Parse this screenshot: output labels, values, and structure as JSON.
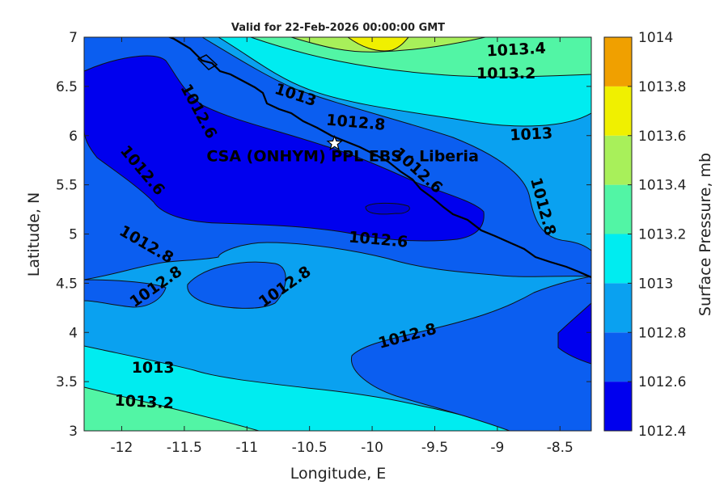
{
  "chart_data": {
    "type": "contour",
    "title": "Valid for 22-Feb-2026 00:00:00 GMT",
    "xlabel": "Longitude, E",
    "ylabel": "Latitude, N",
    "xlim": [
      -12.3,
      -8.25
    ],
    "ylim": [
      3,
      7
    ],
    "xticks": [
      -12,
      -11.5,
      -11,
      -10.5,
      -10,
      -9.5,
      -9,
      -8.5
    ],
    "xtick_labels": [
      "-12",
      "-11.5",
      "-11",
      "-10.5",
      "-10",
      "-9.5",
      "-9",
      "-8.5"
    ],
    "yticks": [
      3,
      3.5,
      4,
      4.5,
      5,
      5.5,
      6,
      6.5,
      7
    ],
    "ytick_labels": [
      "3",
      "3.5",
      "4",
      "4.5",
      "5",
      "5.5",
      "6",
      "6.5",
      "7"
    ],
    "colorbar": {
      "label": "Surface Pressure, mb",
      "levels": [
        1012.4,
        1012.6,
        1012.8,
        1013,
        1013.2,
        1013.4,
        1013.6,
        1013.8,
        1014
      ],
      "level_labels": [
        "1012.4",
        "1012.6",
        "1012.8",
        "1013",
        "1013.2",
        "1013.4",
        "1013.6",
        "1013.8",
        "1014"
      ],
      "colors": [
        "#0000ee",
        "#0b5ef0",
        "#0aa1f0",
        "#00ecf0",
        "#52f5a5",
        "#a8f05a",
        "#f0f000",
        "#f0a000",
        "#f05000"
      ]
    },
    "site": {
      "name": "CSA (ONHYM) PPL EBS - Liberia",
      "lon": -10.3,
      "lat": 5.92
    },
    "contour_labels": [
      {
        "text": "1013.4",
        "lon": -8.85,
        "lat": 6.88,
        "angle": -3
      },
      {
        "text": "1013.2",
        "lon": -8.93,
        "lat": 6.64,
        "angle": 0
      },
      {
        "text": "1013",
        "lon": -10.61,
        "lat": 6.42,
        "angle": 18
      },
      {
        "text": "1013",
        "lon": -8.73,
        "lat": 6.02,
        "angle": -3
      },
      {
        "text": "1012.8",
        "lon": -10.13,
        "lat": 6.14,
        "angle": 5
      },
      {
        "text": "1012.6",
        "lon": -11.38,
        "lat": 6.25,
        "angle": 62
      },
      {
        "text": "1012.6",
        "lon": -11.83,
        "lat": 5.65,
        "angle": 50
      },
      {
        "text": "1012.6",
        "lon": -9.63,
        "lat": 5.65,
        "angle": 42
      },
      {
        "text": "1012.8",
        "lon": -8.63,
        "lat": 5.28,
        "angle": 75
      },
      {
        "text": "1012.6",
        "lon": -9.95,
        "lat": 4.95,
        "angle": 5
      },
      {
        "text": "1012.8",
        "lon": -11.8,
        "lat": 4.9,
        "angle": 30
      },
      {
        "text": "1012.8",
        "lon": -11.73,
        "lat": 4.47,
        "angle": -35
      },
      {
        "text": "1012.8",
        "lon": -10.7,
        "lat": 4.47,
        "angle": -35
      },
      {
        "text": "1012.8",
        "lon": -9.72,
        "lat": 3.97,
        "angle": -15
      },
      {
        "text": "1013",
        "lon": -11.75,
        "lat": 3.65,
        "angle": 0
      },
      {
        "text": "1013.2",
        "lon": -11.82,
        "lat": 3.3,
        "angle": 3
      }
    ]
  }
}
